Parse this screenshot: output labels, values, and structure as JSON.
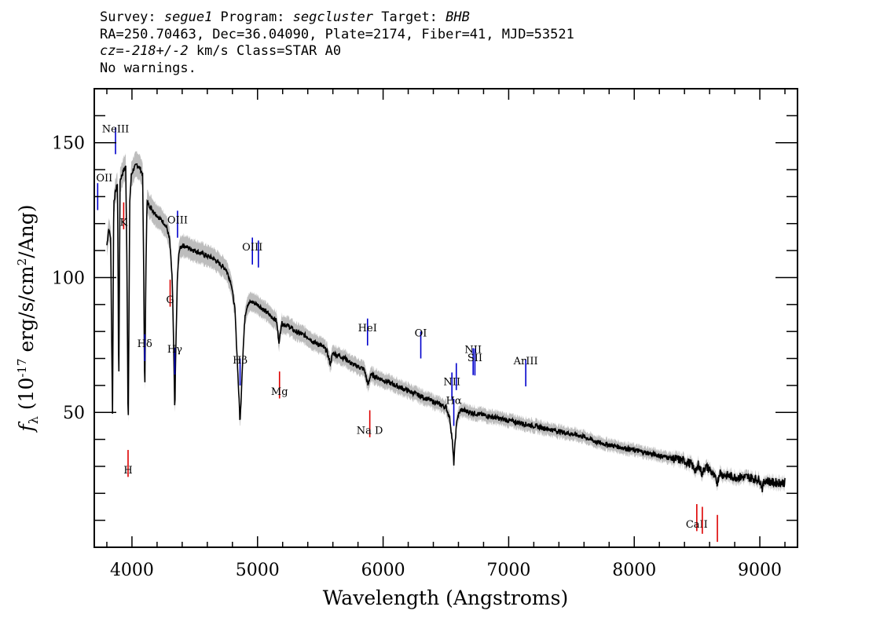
{
  "header": {
    "line1": {
      "survey_label": "Survey: ",
      "survey": "segue1",
      "program_label": " Program: ",
      "program": "segcluster",
      "target_label": " Target: ",
      "target": "BHB"
    },
    "line2": "RA=250.70463, Dec=36.04090, Plate=2174, Fiber=41, MJD=53521",
    "line3": {
      "cz": "cz=-218+/-2",
      "rest": " km/s Class=STAR A0"
    },
    "line4": "No warnings."
  },
  "chart_data": {
    "type": "line",
    "xlabel": "Wavelength (Angstroms)",
    "ylabel": "f_λ (10^-17 erg/s/cm²/Ang)",
    "xlim": [
      3700,
      9300
    ],
    "ylim": [
      0,
      170
    ],
    "xticks": [
      4000,
      5000,
      6000,
      7000,
      8000,
      9000
    ],
    "yticks": [
      50,
      100,
      150
    ],
    "colors": {
      "flux": "#000000",
      "error": "#bdbdbd",
      "emission": "#0000cc",
      "absorption": "#dd0000"
    },
    "series": [
      {
        "values": [
          [
            3800,
            112
          ],
          [
            3815,
            118
          ],
          [
            3830,
            115
          ],
          [
            3845,
            50
          ],
          [
            3855,
            128
          ],
          [
            3870,
            132
          ],
          [
            3885,
            135
          ],
          [
            3895,
            58
          ],
          [
            3905,
            136
          ],
          [
            3920,
            138
          ],
          [
            3935,
            140
          ],
          [
            3950,
            141
          ],
          [
            3958,
            115
          ],
          [
            3970,
            42
          ],
          [
            3982,
            128
          ],
          [
            3995,
            138
          ],
          [
            4010,
            140
          ],
          [
            4025,
            141
          ],
          [
            4040,
            142
          ],
          [
            4055,
            141
          ],
          [
            4070,
            140
          ],
          [
            4085,
            138
          ],
          [
            4094,
            100
          ],
          [
            4102,
            55
          ],
          [
            4110,
            100
          ],
          [
            4120,
            128
          ],
          [
            4135,
            127
          ],
          [
            4150,
            126
          ],
          [
            4165,
            125
          ],
          [
            4180,
            124
          ],
          [
            4200,
            123
          ],
          [
            4220,
            122
          ],
          [
            4240,
            121
          ],
          [
            4260,
            120
          ],
          [
            4280,
            118
          ],
          [
            4300,
            114
          ],
          [
            4320,
            100
          ],
          [
            4332,
            75
          ],
          [
            4341,
            50
          ],
          [
            4350,
            75
          ],
          [
            4362,
            100
          ],
          [
            4375,
            110
          ],
          [
            4400,
            112
          ],
          [
            4450,
            111
          ],
          [
            4500,
            110
          ],
          [
            4550,
            109
          ],
          [
            4600,
            108
          ],
          [
            4650,
            107
          ],
          [
            4700,
            105
          ],
          [
            4750,
            103
          ],
          [
            4790,
            98
          ],
          [
            4820,
            88
          ],
          [
            4840,
            68
          ],
          [
            4861,
            46
          ],
          [
            4880,
            68
          ],
          [
            4900,
            86
          ],
          [
            4920,
            90
          ],
          [
            4950,
            91
          ],
          [
            5000,
            90
          ],
          [
            5050,
            88
          ],
          [
            5100,
            86
          ],
          [
            5150,
            84
          ],
          [
            5172,
            76
          ],
          [
            5190,
            83
          ],
          [
            5250,
            82
          ],
          [
            5300,
            80
          ],
          [
            5350,
            79
          ],
          [
            5400,
            78
          ],
          [
            5450,
            76
          ],
          [
            5500,
            75
          ],
          [
            5550,
            73
          ],
          [
            5580,
            68
          ],
          [
            5600,
            72
          ],
          [
            5650,
            71
          ],
          [
            5700,
            70
          ],
          [
            5750,
            68
          ],
          [
            5800,
            67
          ],
          [
            5850,
            66
          ],
          [
            5880,
            60
          ],
          [
            5900,
            64
          ],
          [
            5950,
            63
          ],
          [
            6000,
            62
          ],
          [
            6100,
            60
          ],
          [
            6200,
            58
          ],
          [
            6300,
            56
          ],
          [
            6400,
            54
          ],
          [
            6450,
            53
          ],
          [
            6500,
            52
          ],
          [
            6530,
            48
          ],
          [
            6550,
            40
          ],
          [
            6563,
            31
          ],
          [
            6575,
            40
          ],
          [
            6590,
            48
          ],
          [
            6620,
            51
          ],
          [
            6700,
            50
          ],
          [
            6800,
            49
          ],
          [
            6900,
            48
          ],
          [
            7000,
            47
          ],
          [
            7100,
            46
          ],
          [
            7200,
            45
          ],
          [
            7300,
            44
          ],
          [
            7400,
            43
          ],
          [
            7500,
            42
          ],
          [
            7600,
            41
          ],
          [
            7700,
            39
          ],
          [
            7800,
            38
          ],
          [
            7900,
            37
          ],
          [
            8000,
            36
          ],
          [
            8100,
            35
          ],
          [
            8200,
            34
          ],
          [
            8300,
            33
          ],
          [
            8400,
            32
          ],
          [
            8450,
            31
          ],
          [
            8498,
            28
          ],
          [
            8510,
            31
          ],
          [
            8542,
            27
          ],
          [
            8560,
            30
          ],
          [
            8600,
            29
          ],
          [
            8662,
            24
          ],
          [
            8680,
            28
          ],
          [
            8700,
            27
          ],
          [
            8800,
            26
          ],
          [
            8900,
            26
          ],
          [
            9000,
            25
          ],
          [
            9020,
            22
          ],
          [
            9040,
            25
          ],
          [
            9100,
            24
          ],
          [
            9200,
            24
          ]
        ]
      }
    ],
    "emission_lines": [
      {
        "label": "OII",
        "wavelength": 3727
      },
      {
        "label": "NeIII",
        "wavelength": 3869
      },
      {
        "label": "Hδ",
        "wavelength": 4102
      },
      {
        "label": "Hγ",
        "wavelength": 4341
      },
      {
        "label": "OIII",
        "wavelength": 4363
      },
      {
        "label": "Hβ",
        "wavelength": 4861
      },
      {
        "label": "OIII",
        "wavelength": 4959
      },
      {
        "label": "",
        "wavelength": 5007
      },
      {
        "label": "HeI",
        "wavelength": 5876
      },
      {
        "label": "OI",
        "wavelength": 6300
      },
      {
        "label": "NII",
        "wavelength": 6548
      },
      {
        "label": "Hα",
        "wavelength": 6563
      },
      {
        "label": "",
        "wavelength": 6583
      },
      {
        "label": "NII",
        "wavelength": 6717
      },
      {
        "label": "SII",
        "wavelength": 6731
      },
      {
        "label": "ArIII",
        "wavelength": 7136
      }
    ],
    "absorption_lines": [
      {
        "label": "K",
        "wavelength": 3934
      },
      {
        "label": "H",
        "wavelength": 3969
      },
      {
        "label": "G",
        "wavelength": 4304
      },
      {
        "label": "Mg",
        "wavelength": 5175
      },
      {
        "label": "Na D",
        "wavelength": 5894
      },
      {
        "label": "CaII",
        "wavelength": 8498
      },
      {
        "label": "",
        "wavelength": 8542
      },
      {
        "label": "",
        "wavelength": 8662
      }
    ]
  }
}
